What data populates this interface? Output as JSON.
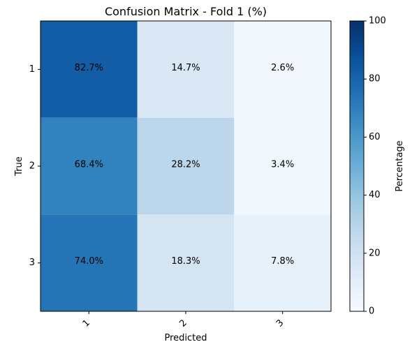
{
  "chart_data": {
    "type": "heatmap",
    "title": "Confusion Matrix - Fold 1 (%)",
    "xlabel": "Predicted",
    "ylabel": "True",
    "x_categories": [
      "1",
      "2",
      "3"
    ],
    "y_categories": [
      "1",
      "2",
      "3"
    ],
    "values": [
      [
        82.7,
        14.7,
        2.6
      ],
      [
        68.4,
        28.2,
        3.4
      ],
      [
        74.0,
        18.3,
        7.8
      ]
    ],
    "cell_labels": [
      [
        "82.7%",
        "14.7%",
        "2.6%"
      ],
      [
        "68.4%",
        "28.2%",
        "3.4%"
      ],
      [
        "74.0%",
        "18.3%",
        "7.8%"
      ]
    ],
    "colormap": "Blues",
    "vmin": 0,
    "vmax": 100,
    "colorbar": {
      "label": "Percentage",
      "ticks": [
        0,
        20,
        40,
        60,
        80,
        100
      ],
      "tick_labels": [
        "0",
        "20",
        "40",
        "60",
        "80",
        "100"
      ]
    },
    "grid": false
  }
}
